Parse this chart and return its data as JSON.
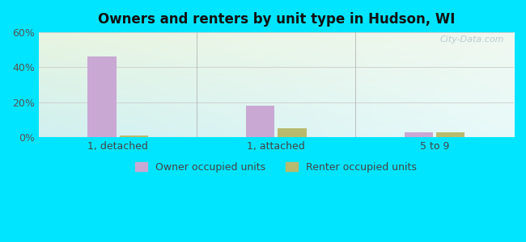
{
  "title": "Owners and renters by unit type in Hudson, WI",
  "categories": [
    "1, detached",
    "1, attached",
    "5 to 9"
  ],
  "owner_values": [
    46,
    18,
    3
  ],
  "renter_values": [
    1,
    5,
    3
  ],
  "owner_color": "#c9a8d4",
  "renter_color": "#b8ba6e",
  "ylim": [
    0,
    60
  ],
  "yticks": [
    0,
    20,
    40,
    60
  ],
  "ytick_labels": [
    "0%",
    "20%",
    "40%",
    "60%"
  ],
  "background_outer": "#00e5ff",
  "grid_color": "#cccccc",
  "bar_width": 0.18,
  "legend_owner": "Owner occupied units",
  "legend_renter": "Renter occupied units",
  "watermark": "City-Data.com"
}
